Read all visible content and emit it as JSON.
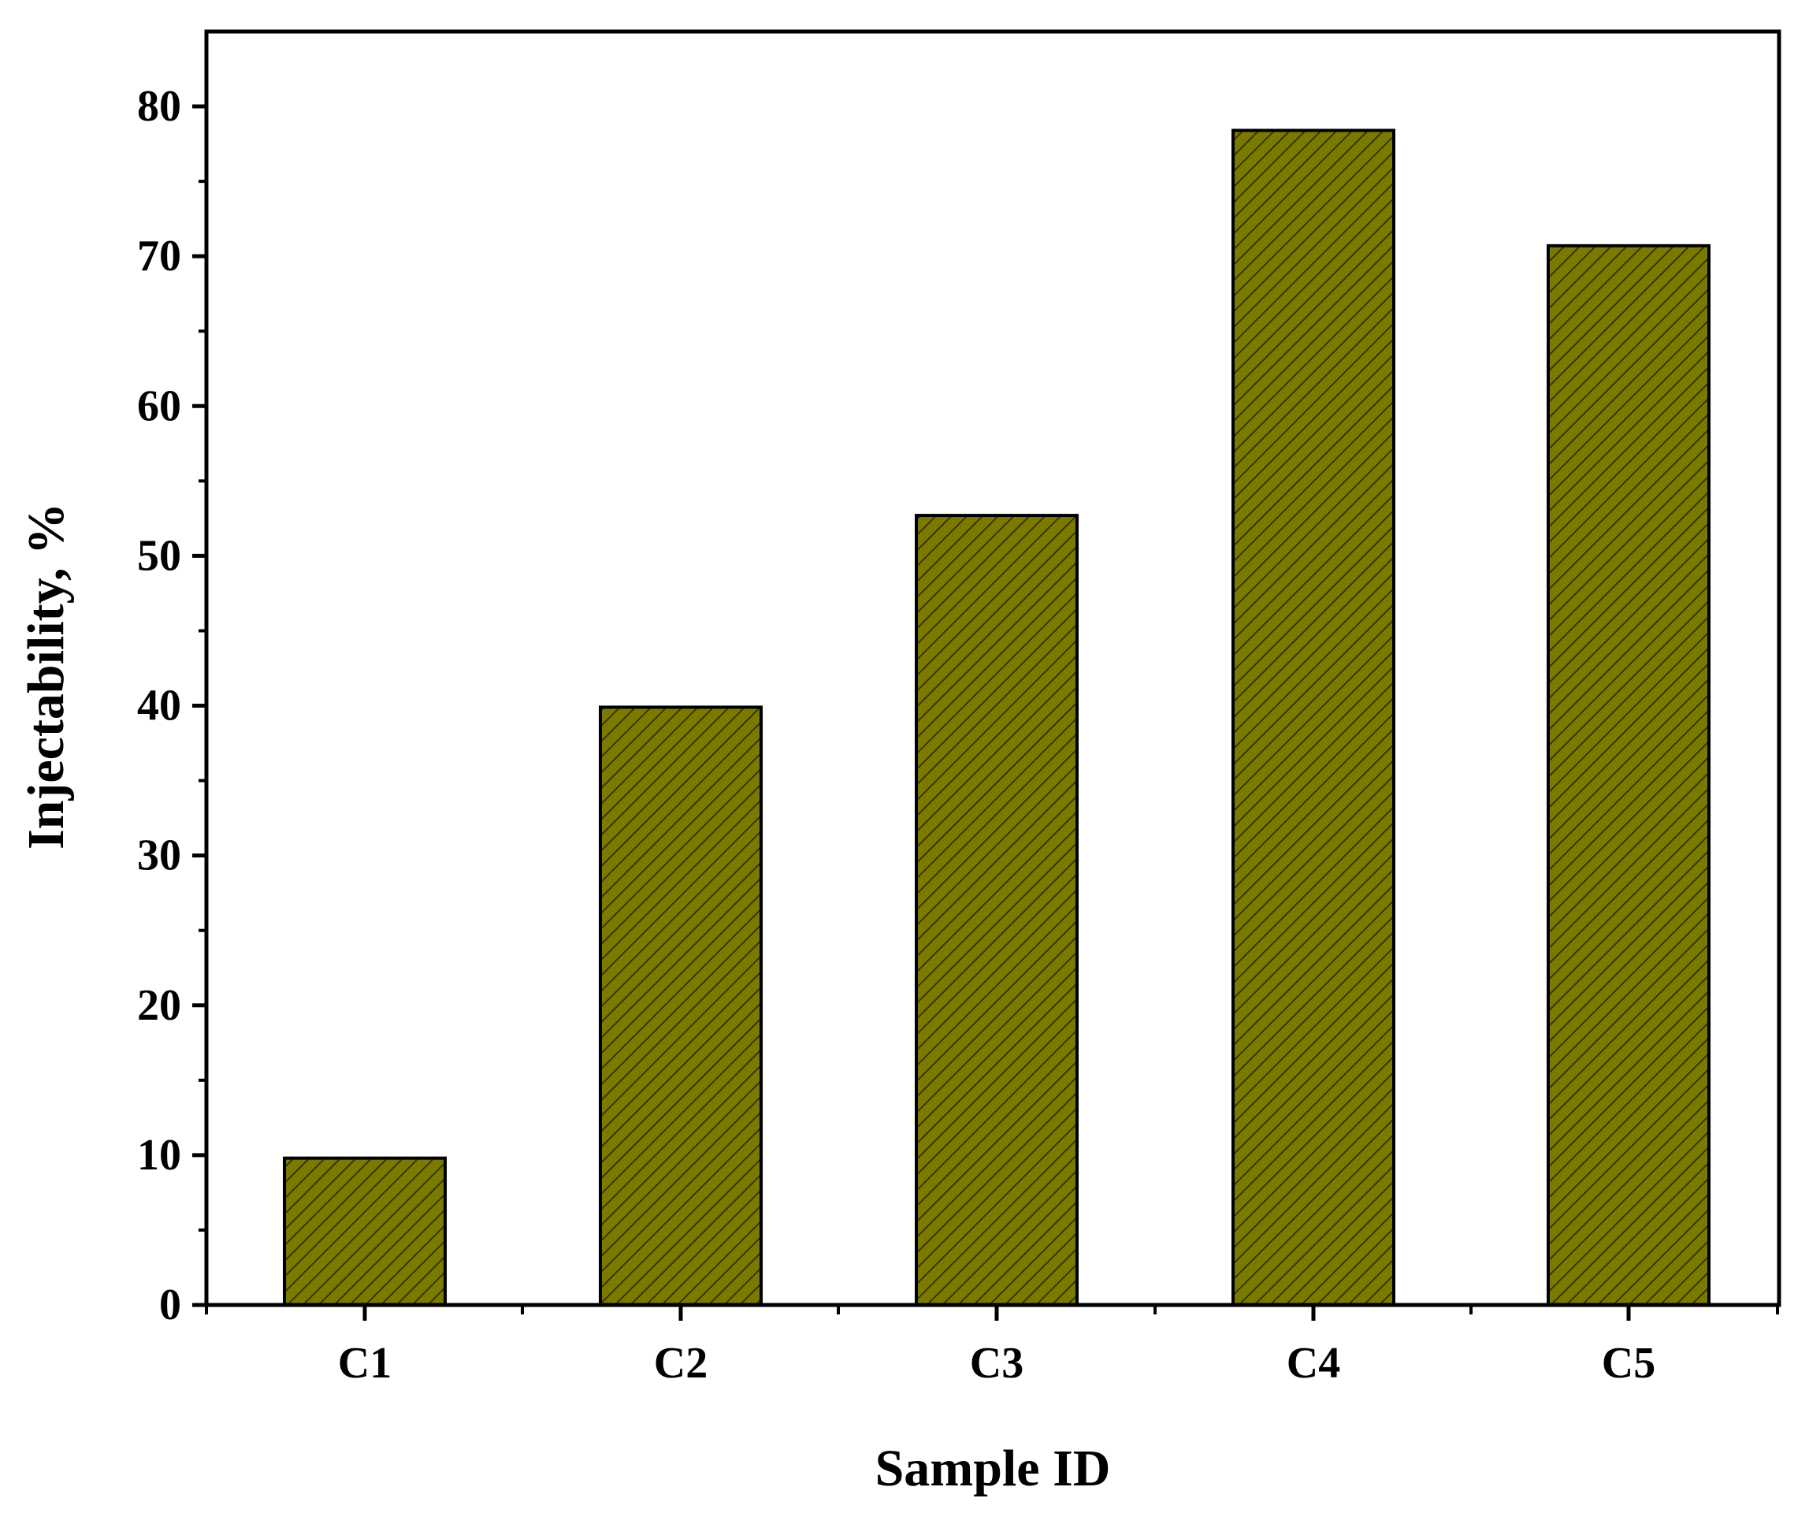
{
  "chart_data": {
    "type": "bar",
    "categories": [
      "C1",
      "C2",
      "C3",
      "C4",
      "C5"
    ],
    "values": [
      9.8,
      39.9,
      52.7,
      78.4,
      70.7
    ],
    "xlabel": "Sample ID",
    "ylabel": "Injectability, %",
    "ylim": [
      0,
      85
    ],
    "yticks": [
      0,
      10,
      20,
      30,
      40,
      50,
      60,
      70,
      80
    ],
    "grid": false,
    "legend": "none",
    "bar_color": "#7a7a00",
    "hatch_color": "#2e2e00"
  }
}
